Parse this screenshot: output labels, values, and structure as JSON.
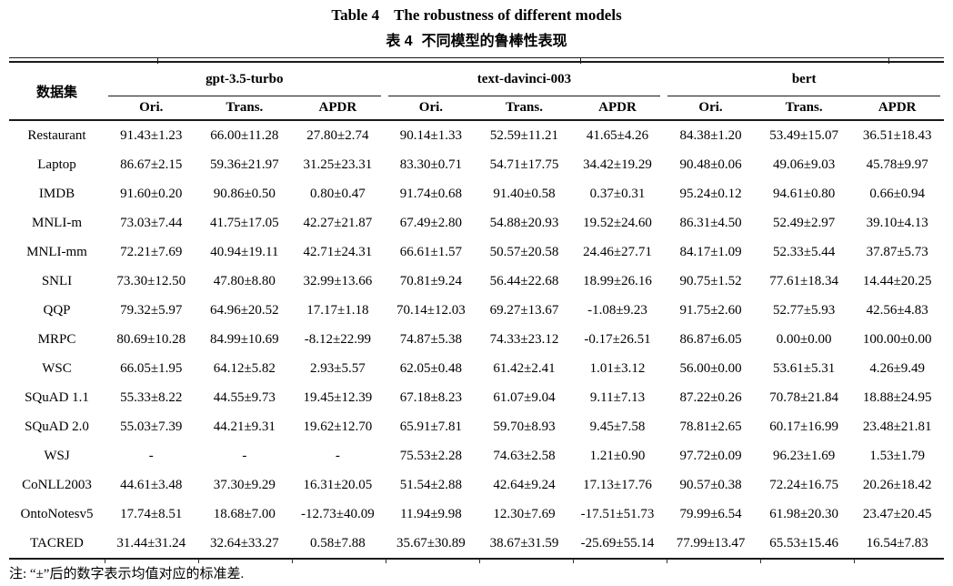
{
  "title": {
    "label_en": "Table 4",
    "text_en": "The robustness of different models",
    "label_zh": "表 4",
    "text_zh": "不同模型的鲁棒性表现"
  },
  "header": {
    "dataset_col": "数据集",
    "groups": [
      {
        "name": "gpt-3.5-turbo",
        "subcols": [
          "Ori.",
          "Trans.",
          "APDR"
        ]
      },
      {
        "name": "text-davinci-003",
        "subcols": [
          "Ori.",
          "Trans.",
          "APDR"
        ]
      },
      {
        "name": "bert",
        "subcols": [
          "Ori.",
          "Trans.",
          "APDR"
        ]
      }
    ]
  },
  "rows": [
    {
      "dataset": "Restaurant",
      "values": [
        "91.43±1.23",
        "66.00±11.28",
        "27.80±2.74",
        "90.14±1.33",
        "52.59±11.21",
        "41.65±4.26",
        "84.38±1.20",
        "53.49±15.07",
        "36.51±18.43"
      ]
    },
    {
      "dataset": "Laptop",
      "values": [
        "86.67±2.15",
        "59.36±21.97",
        "31.25±23.31",
        "83.30±0.71",
        "54.71±17.75",
        "34.42±19.29",
        "90.48±0.06",
        "49.06±9.03",
        "45.78±9.97"
      ]
    },
    {
      "dataset": "IMDB",
      "values": [
        "91.60±0.20",
        "90.86±0.50",
        "0.80±0.47",
        "91.74±0.68",
        "91.40±0.58",
        "0.37±0.31",
        "95.24±0.12",
        "94.61±0.80",
        "0.66±0.94"
      ]
    },
    {
      "dataset": "MNLI-m",
      "values": [
        "73.03±7.44",
        "41.75±17.05",
        "42.27±21.87",
        "67.49±2.80",
        "54.88±20.93",
        "19.52±24.60",
        "86.31±4.50",
        "52.49±2.97",
        "39.10±4.13"
      ]
    },
    {
      "dataset": "MNLI-mm",
      "values": [
        "72.21±7.69",
        "40.94±19.11",
        "42.71±24.31",
        "66.61±1.57",
        "50.57±20.58",
        "24.46±27.71",
        "84.17±1.09",
        "52.33±5.44",
        "37.87±5.73"
      ]
    },
    {
      "dataset": "SNLI",
      "values": [
        "73.30±12.50",
        "47.80±8.80",
        "32.99±13.66",
        "70.81±9.24",
        "56.44±22.68",
        "18.99±26.16",
        "90.75±1.52",
        "77.61±18.34",
        "14.44±20.25"
      ]
    },
    {
      "dataset": "QQP",
      "values": [
        "79.32±5.97",
        "64.96±20.52",
        "17.17±1.18",
        "70.14±12.03",
        "69.27±13.67",
        "-1.08±9.23",
        "91.75±2.60",
        "52.77±5.93",
        "42.56±4.83"
      ]
    },
    {
      "dataset": "MRPC",
      "values": [
        "80.69±10.28",
        "84.99±10.69",
        "-8.12±22.99",
        "74.87±5.38",
        "74.33±23.12",
        "-0.17±26.51",
        "86.87±6.05",
        "0.00±0.00",
        "100.00±0.00"
      ]
    },
    {
      "dataset": "WSC",
      "values": [
        "66.05±1.95",
        "64.12±5.82",
        "2.93±5.57",
        "62.05±0.48",
        "61.42±2.41",
        "1.01±3.12",
        "56.00±0.00",
        "53.61±5.31",
        "4.26±9.49"
      ]
    },
    {
      "dataset": "SQuAD 1.1",
      "values": [
        "55.33±8.22",
        "44.55±9.73",
        "19.45±12.39",
        "67.18±8.23",
        "61.07±9.04",
        "9.11±7.13",
        "87.22±0.26",
        "70.78±21.84",
        "18.88±24.95"
      ]
    },
    {
      "dataset": "SQuAD 2.0",
      "values": [
        "55.03±7.39",
        "44.21±9.31",
        "19.62±12.70",
        "65.91±7.81",
        "59.70±8.93",
        "9.45±7.58",
        "78.81±2.65",
        "60.17±16.99",
        "23.48±21.81"
      ]
    },
    {
      "dataset": "WSJ",
      "values": [
        "-",
        "-",
        "-",
        "75.53±2.28",
        "74.63±2.58",
        "1.21±0.90",
        "97.72±0.09",
        "96.23±1.69",
        "1.53±1.79"
      ]
    },
    {
      "dataset": "CoNLL2003",
      "values": [
        "44.61±3.48",
        "37.30±9.29",
        "16.31±20.05",
        "51.54±2.88",
        "42.64±9.24",
        "17.13±17.76",
        "90.57±0.38",
        "72.24±16.75",
        "20.26±18.42"
      ]
    },
    {
      "dataset": "OntoNotesv5",
      "values": [
        "17.74±8.51",
        "18.68±7.00",
        "-12.73±40.09",
        "11.94±9.98",
        "12.30±7.69",
        "-17.51±51.73",
        "79.99±6.54",
        "61.98±20.30",
        "23.47±20.45"
      ]
    },
    {
      "dataset": "TACRED",
      "values": [
        "31.44±31.24",
        "32.64±33.27",
        "0.58±7.88",
        "35.67±30.89",
        "38.67±31.59",
        "-25.69±55.14",
        "77.99±13.47",
        "65.53±15.46",
        "16.54±7.83"
      ]
    }
  ],
  "footnote": "注: “±”后的数字表示均值对应的标准差.",
  "colors": {
    "rule": "#1a1a1a",
    "text": "#000000",
    "background": "#ffffff"
  }
}
